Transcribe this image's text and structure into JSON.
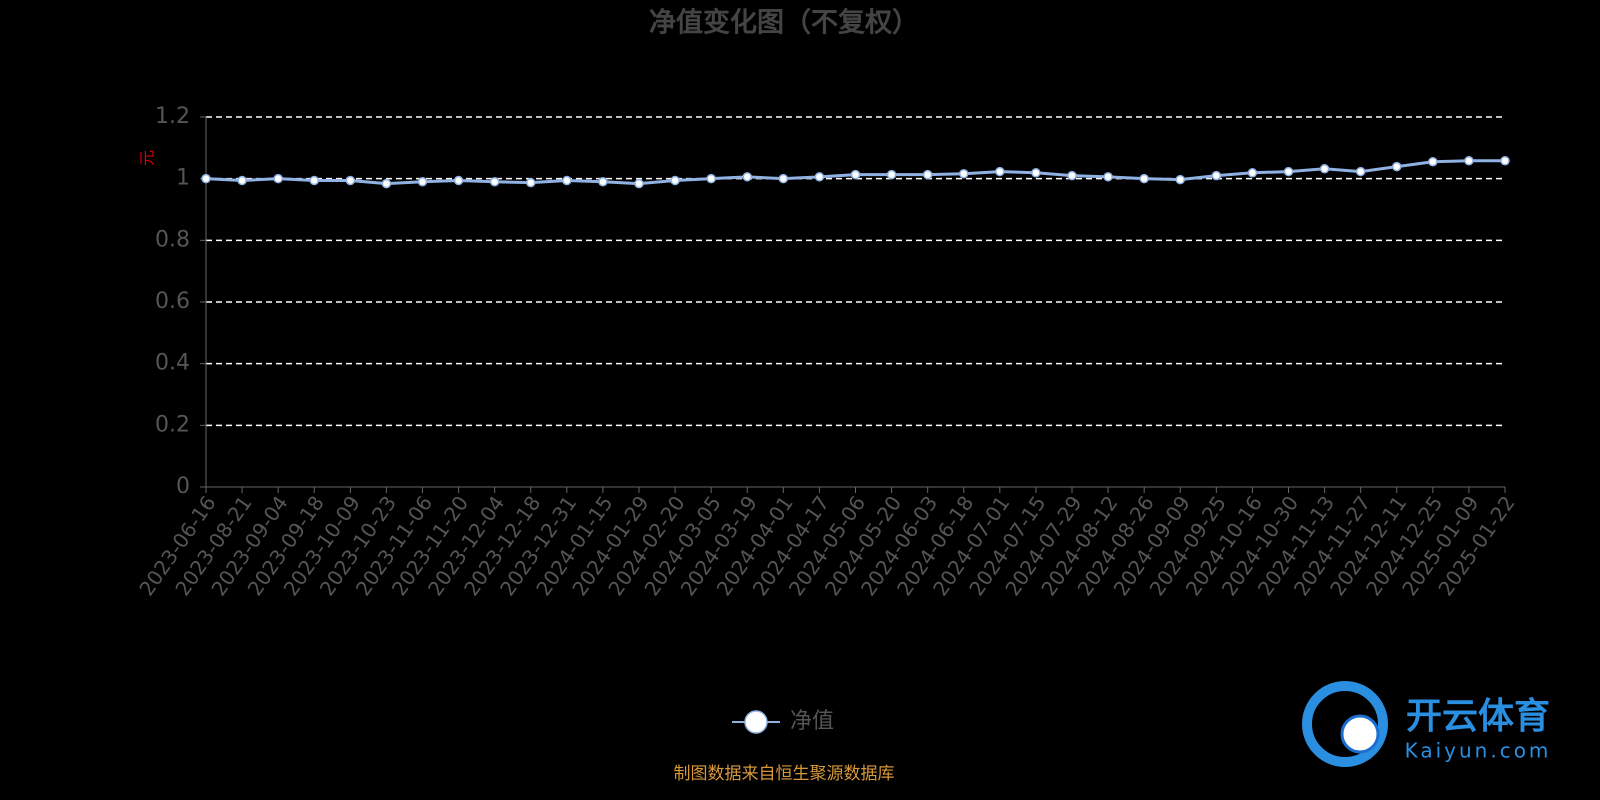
{
  "chart_data": {
    "type": "line",
    "title": "净值变化图（不复权）",
    "y_axis_label": "元",
    "x": [
      "2023-06-16",
      "2023-08-21",
      "2023-09-04",
      "2023-09-18",
      "2023-10-09",
      "2023-10-23",
      "2023-11-06",
      "2023-11-20",
      "2023-12-04",
      "2023-12-18",
      "2023-12-31",
      "2024-01-15",
      "2024-01-29",
      "2024-02-20",
      "2024-03-05",
      "2024-03-19",
      "2024-04-01",
      "2024-04-17",
      "2024-05-06",
      "2024-05-20",
      "2024-06-03",
      "2024-06-18",
      "2024-07-01",
      "2024-07-15",
      "2024-07-29",
      "2024-08-12",
      "2024-08-26",
      "2024-09-09",
      "2024-09-25",
      "2024-10-16",
      "2024-10-30",
      "2024-11-13",
      "2024-11-27",
      "2024-12-11",
      "2024-12-25",
      "2025-01-09",
      "2025-01-22"
    ],
    "series": [
      {
        "name": "净值",
        "color": "#8fb2e3",
        "values": [
          1.0,
          0.994,
          1.0,
          0.994,
          0.994,
          0.984,
          0.99,
          0.994,
          0.99,
          0.987,
          0.994,
          0.99,
          0.984,
          0.994,
          1.0,
          1.006,
          1.0,
          1.006,
          1.013,
          1.013,
          1.013,
          1.016,
          1.023,
          1.019,
          1.01,
          1.006,
          1.0,
          0.997,
          1.01,
          1.019,
          1.023,
          1.032,
          1.023,
          1.039,
          1.055,
          1.058,
          1.058
        ]
      }
    ],
    "ylim": [
      0,
      1.2
    ],
    "yticks": [
      0,
      0.2,
      0.4,
      0.6,
      0.8,
      1,
      1.2
    ],
    "grid": true,
    "legend": "bottom",
    "source": "制图数据来自恒生聚源数据库",
    "watermark": {
      "name": "开云体育",
      "site": "Kaiyun.com"
    }
  }
}
